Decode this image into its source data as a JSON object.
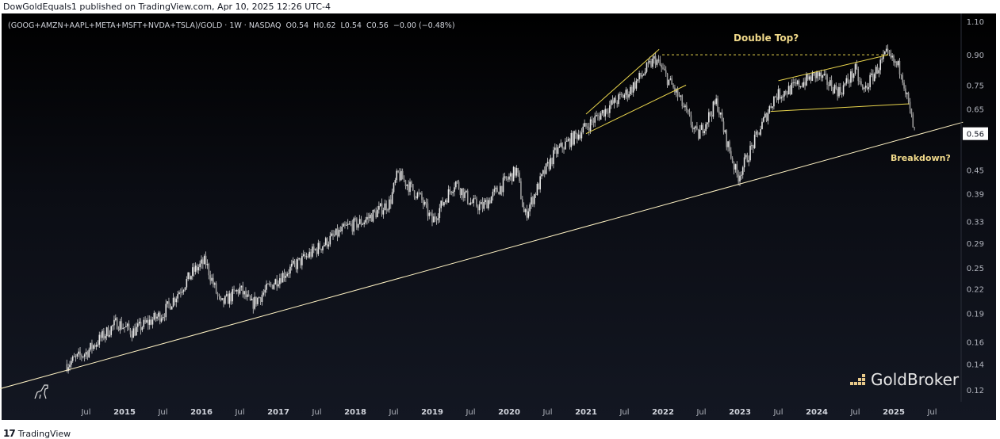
{
  "header": {
    "published": "DowGoldEquals1 published on TradingView.com, Apr 10, 2025 12:26 UTC-4"
  },
  "legend": {
    "symbol": "(GOOG+AMZN+AAPL+META+MSFT+NVDA+TSLA)/GOLD",
    "interval": "1W",
    "exchange": "NASDAQ",
    "open": "O0.54",
    "high": "H0.62",
    "low": "L0.54",
    "close": "C0.56",
    "change": "−0.00 (−0.48%)"
  },
  "annotations": {
    "double_top": "Double Top?",
    "breakdown": "Breakdown?"
  },
  "price_label": "0.56",
  "watermark": "GoldBroker",
  "footer": {
    "brand": "TradingView",
    "logo": "17"
  },
  "colors": {
    "annotation": "#f0d98a",
    "trend": "#fff3c4",
    "candle": "#d9d9d9",
    "yellow": "#e8d44d"
  },
  "chart_data": {
    "type": "candlestick",
    "title": "(GOOG+AMZN+AAPL+META+MSFT+NVDA+TSLA)/GOLD · 1W",
    "yscale": "log",
    "ylim": [
      0.115,
      1.12
    ],
    "yticks": [
      "1.10",
      "0.90",
      "0.75",
      "0.65",
      "0.45",
      "0.39",
      "0.33",
      "0.29",
      "0.25",
      "0.22",
      "0.19",
      "0.16",
      "0.14",
      "0.12"
    ],
    "xticks": [
      "Jul",
      "2015",
      "Jul",
      "2016",
      "Jul",
      "2017",
      "Jul",
      "2018",
      "Jul",
      "2019",
      "Jul",
      "2020",
      "Jul",
      "2021",
      "Jul",
      "2022",
      "Jul",
      "2023",
      "Jul",
      "2024",
      "Jul",
      "2025",
      "Jul"
    ],
    "xlim": [
      2014.0,
      2025.6
    ],
    "path": [
      [
        2014.25,
        0.14
      ],
      [
        2014.5,
        0.15
      ],
      [
        2014.9,
        0.18
      ],
      [
        2015.1,
        0.17
      ],
      [
        2015.5,
        0.19
      ],
      [
        2015.9,
        0.245
      ],
      [
        2016.05,
        0.26
      ],
      [
        2016.25,
        0.2
      ],
      [
        2016.5,
        0.22
      ],
      [
        2016.65,
        0.2
      ],
      [
        2017.0,
        0.235
      ],
      [
        2017.5,
        0.28
      ],
      [
        2017.9,
        0.32
      ],
      [
        2018.1,
        0.33
      ],
      [
        2018.45,
        0.37
      ],
      [
        2018.55,
        0.44
      ],
      [
        2018.85,
        0.38
      ],
      [
        2019.0,
        0.33
      ],
      [
        2019.3,
        0.42
      ],
      [
        2019.5,
        0.37
      ],
      [
        2019.65,
        0.36
      ],
      [
        2019.95,
        0.42
      ],
      [
        2020.1,
        0.45
      ],
      [
        2020.2,
        0.34
      ],
      [
        2020.45,
        0.44
      ],
      [
        2020.6,
        0.5
      ],
      [
        2020.9,
        0.56
      ],
      [
        2021.3,
        0.66
      ],
      [
        2021.55,
        0.72
      ],
      [
        2021.9,
        0.88
      ],
      [
        2022.2,
        0.7
      ],
      [
        2022.45,
        0.55
      ],
      [
        2022.7,
        0.68
      ],
      [
        2022.8,
        0.56
      ],
      [
        2022.97,
        0.43
      ],
      [
        2023.2,
        0.54
      ],
      [
        2023.45,
        0.7
      ],
      [
        2023.7,
        0.74
      ],
      [
        2024.0,
        0.8
      ],
      [
        2024.3,
        0.72
      ],
      [
        2024.5,
        0.82
      ],
      [
        2024.6,
        0.72
      ],
      [
        2024.9,
        0.9
      ],
      [
        2025.1,
        0.82
      ],
      [
        2025.27,
        0.56
      ]
    ],
    "last": {
      "open": 0.54,
      "high": 0.62,
      "low": 0.54,
      "close": 0.56
    },
    "trendlines": [
      {
        "name": "long-term-support",
        "from": [
          2013.2,
          0.118
        ],
        "to": [
          2025.9,
          0.6
        ]
      },
      {
        "name": "double-top-resistance",
        "from": [
          2021.99,
          0.9
        ],
        "to": [
          2024.93,
          0.9
        ],
        "dashed": true
      },
      {
        "name": "channel-2021-upper",
        "from": [
          2021.0,
          0.63
        ],
        "to": [
          2021.95,
          0.93
        ]
      },
      {
        "name": "channel-2021-lower",
        "from": [
          2021.0,
          0.56
        ],
        "to": [
          2022.3,
          0.75
        ]
      },
      {
        "name": "channel-2024-upper",
        "from": [
          2023.5,
          0.77
        ],
        "to": [
          2024.93,
          0.9
        ]
      },
      {
        "name": "channel-2024-lower",
        "from": [
          2023.4,
          0.64
        ],
        "to": [
          2025.2,
          0.67
        ]
      }
    ]
  }
}
